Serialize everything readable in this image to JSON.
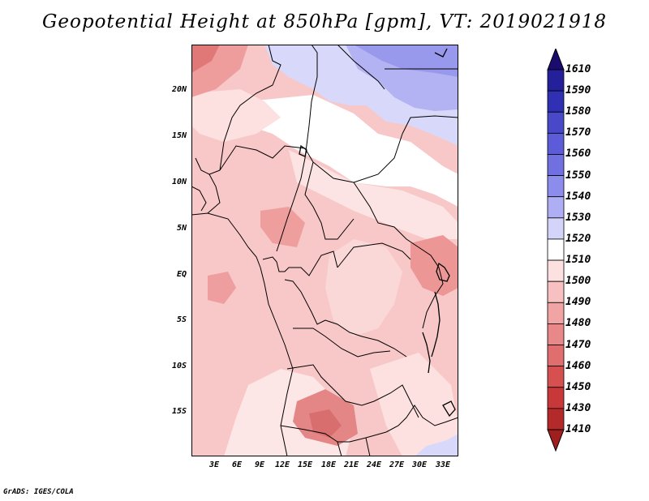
{
  "title": "Geopotential Height at 850hPa [gpm], VT: 2019021918",
  "footer": "GrADS: IGES/COLA",
  "lat_labels": [
    "20N",
    "15N",
    "10N",
    "5N",
    "EQ",
    "5S",
    "10S",
    "15S"
  ],
  "lon_labels": [
    "3E",
    "6E",
    "9E",
    "12E",
    "15E",
    "18E",
    "21E",
    "24E",
    "27E",
    "30E",
    "33E"
  ],
  "colorbar": {
    "levels": [
      "1610",
      "1590",
      "1580",
      "1570",
      "1560",
      "1550",
      "1540",
      "1530",
      "1520",
      "1510",
      "1500",
      "1490",
      "1480",
      "1470",
      "1460",
      "1450",
      "1430",
      "1410"
    ],
    "colors": [
      "#1a0c6e",
      "#24209a",
      "#3030b4",
      "#4848c8",
      "#5c5cd8",
      "#7070e0",
      "#8c8cec",
      "#aeaef4",
      "#d4d4fa",
      "#ffffff",
      "#fde0e0",
      "#f8c0c0",
      "#f1a4a4",
      "#e98888",
      "#e06e6e",
      "#d65050",
      "#c83838",
      "#b42a2a",
      "#a01e1e"
    ]
  }
}
